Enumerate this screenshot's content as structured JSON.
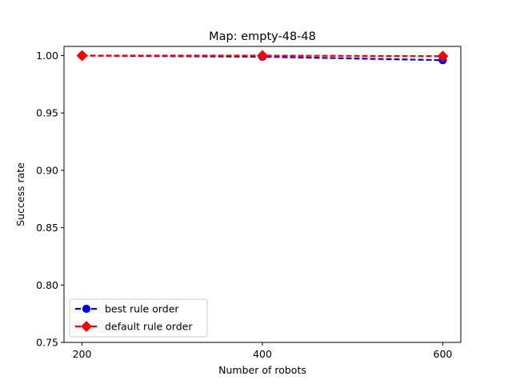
{
  "chart_data": {
    "type": "line",
    "title": "Map: empty-48-48",
    "xlabel": "Number of robots",
    "ylabel": "Success rate",
    "x": [
      200,
      400,
      600
    ],
    "xticks": [
      "200",
      "400",
      "600"
    ],
    "yticks": [
      "0.75",
      "0.80",
      "0.85",
      "0.90",
      "0.95",
      "1.00"
    ],
    "ytick_values": [
      0.75,
      0.8,
      0.85,
      0.9,
      0.95,
      1.0
    ],
    "xlim": [
      180,
      620
    ],
    "ylim": [
      0.75,
      1.008
    ],
    "grid": false,
    "legend_position": "lower-left",
    "series": [
      {
        "name": "best rule order",
        "values": [
          1.0,
          0.999,
          0.996
        ],
        "color": "#0000ff",
        "marker": "circle",
        "linestyle": "dashed"
      },
      {
        "name": "default rule order",
        "values": [
          1.0,
          1.0,
          0.9995
        ],
        "color": "#ff0000",
        "marker": "diamond",
        "linestyle": "dashed"
      }
    ]
  }
}
